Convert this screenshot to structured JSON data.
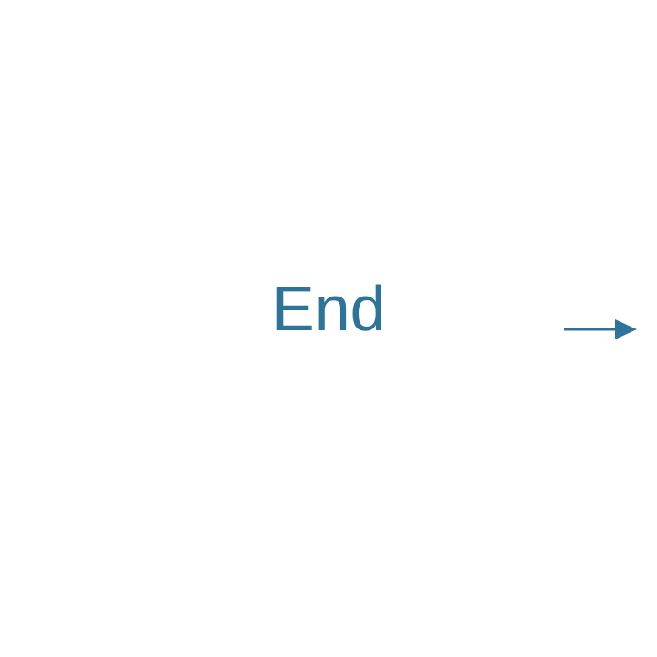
{
  "slide": {
    "title": "End"
  },
  "navigation": {
    "next_icon": "arrow-right-icon"
  },
  "colors": {
    "accent": "#2e7399",
    "background": "#ffffff"
  }
}
